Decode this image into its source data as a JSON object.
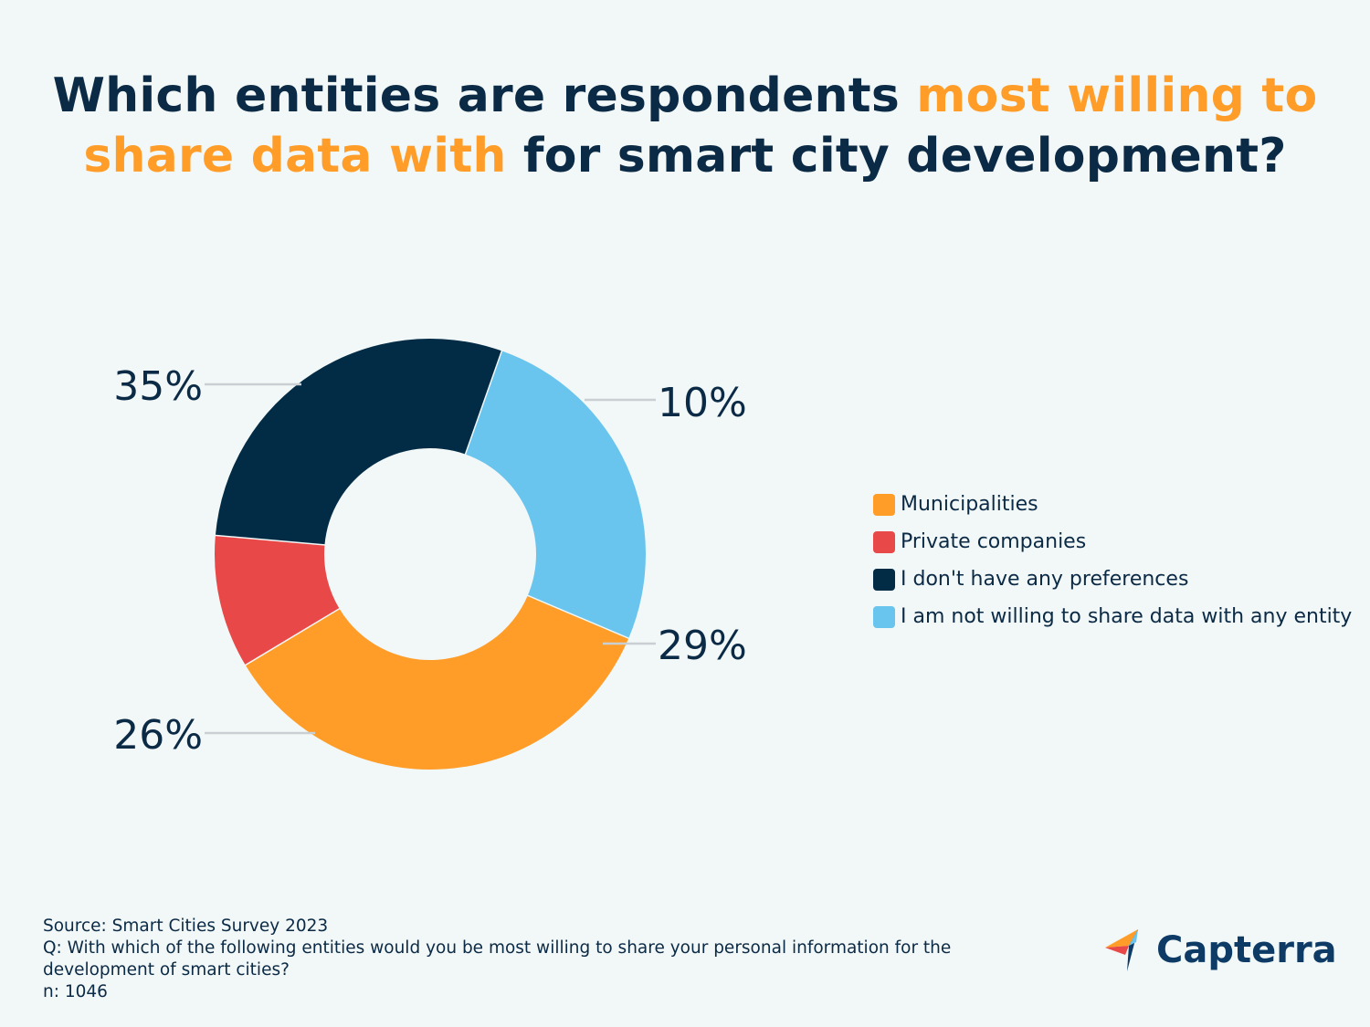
{
  "title": {
    "part1": "Which entities are respondents ",
    "highlight1": "most willing to",
    "highlight2": "share data with",
    "part2": " for smart city development?"
  },
  "chart_data": {
    "type": "pie",
    "donut": true,
    "categories": [
      "Municipalities",
      "Private companies",
      "I don't have any preferences",
      "I am not willing to share data with any entity"
    ],
    "values": [
      35,
      10,
      29,
      26
    ],
    "labels": [
      "35%",
      "10%",
      "29%",
      "26%"
    ],
    "colors": [
      "#ff9d28",
      "#e94848",
      "#022c45",
      "#6ac5ee"
    ],
    "legend_position": "right"
  },
  "footer": {
    "source": "Source: Smart Cities Survey 2023",
    "question": "Q: With which of the following entities would you be most willing to share your personal information for the development of smart cities?",
    "n": "n: 1046"
  },
  "brand": {
    "name": "Capterra",
    "icon": "capterra-arrow-icon"
  }
}
